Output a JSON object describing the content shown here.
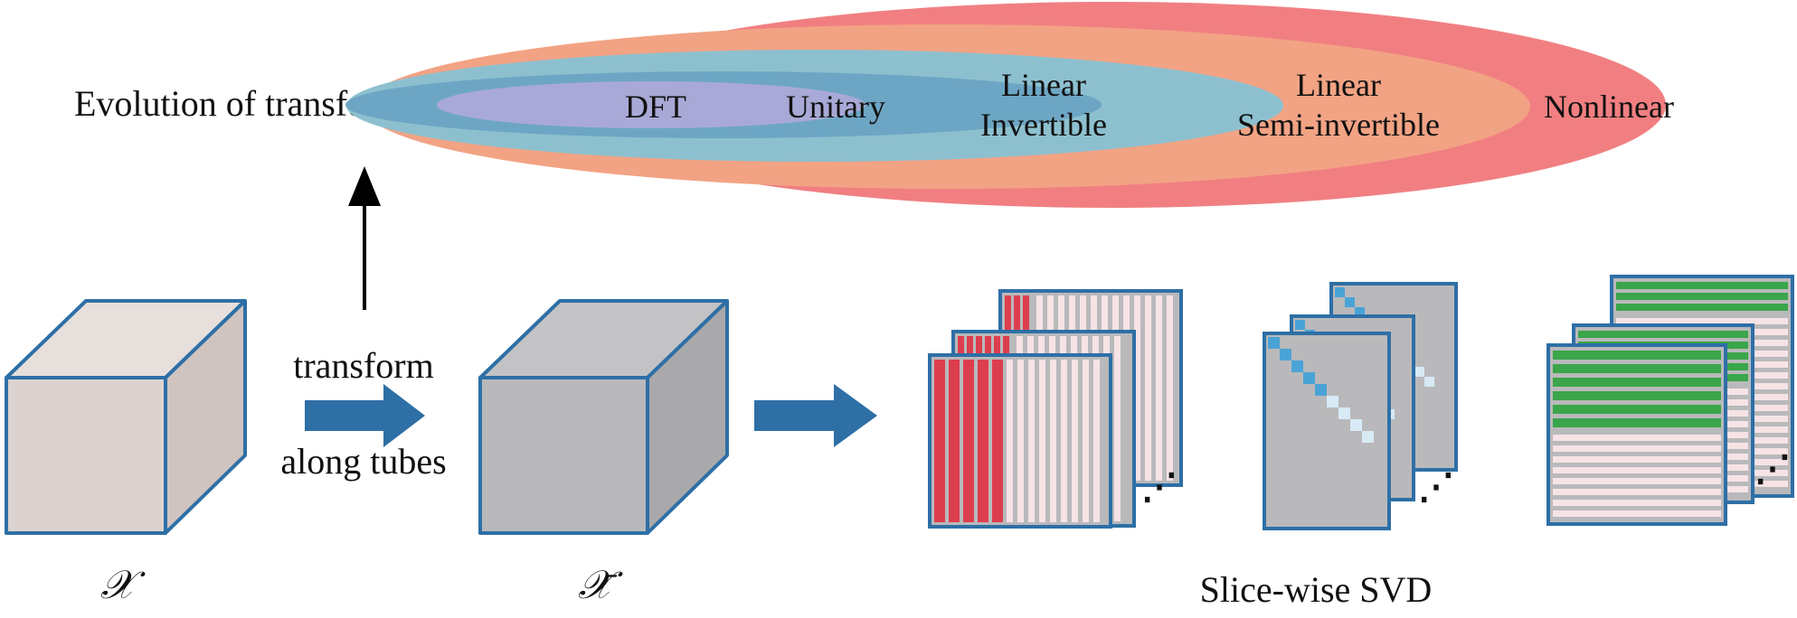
{
  "evolution": {
    "label": "Evolution of transforms:",
    "levels": [
      {
        "lines": [
          "Nonlinear"
        ],
        "color": "#f17f81"
      },
      {
        "lines": [
          "Linear",
          "Semi-invertible"
        ],
        "color": "#f2a384"
      },
      {
        "lines": [
          "Linear",
          "Invertible"
        ],
        "color": "#8dc0cf"
      },
      {
        "lines": [
          "Unitary"
        ],
        "color": "#6da6c4"
      },
      {
        "lines": [
          "DFT"
        ],
        "color": "#a9a9d7"
      }
    ]
  },
  "transform": {
    "label_line1": "transform",
    "label_line2": "along tubes"
  },
  "tensor_input": {
    "symbol": "𝒳"
  },
  "tensor_transformed": {
    "symbol": "𝒳̄"
  },
  "svd": {
    "caption": "Slice-wise SVD",
    "ellipsis": "⋰"
  },
  "colors": {
    "arrow_blue": "#2e6fa6",
    "cube_outline": "#2e6fa6",
    "cube_input_fill": "#dcd3d0",
    "cube_transformed_fill": "#b9b9bb",
    "u_column_red": "#dd3e4e",
    "sigma_diag_blue": "#4aa3d6",
    "sigma_diag_light": "#d7eaf6",
    "v_row_green": "#3aa54a",
    "stripe_pink": "#f6e3e6",
    "slice_gray": "#b9b9bb"
  }
}
